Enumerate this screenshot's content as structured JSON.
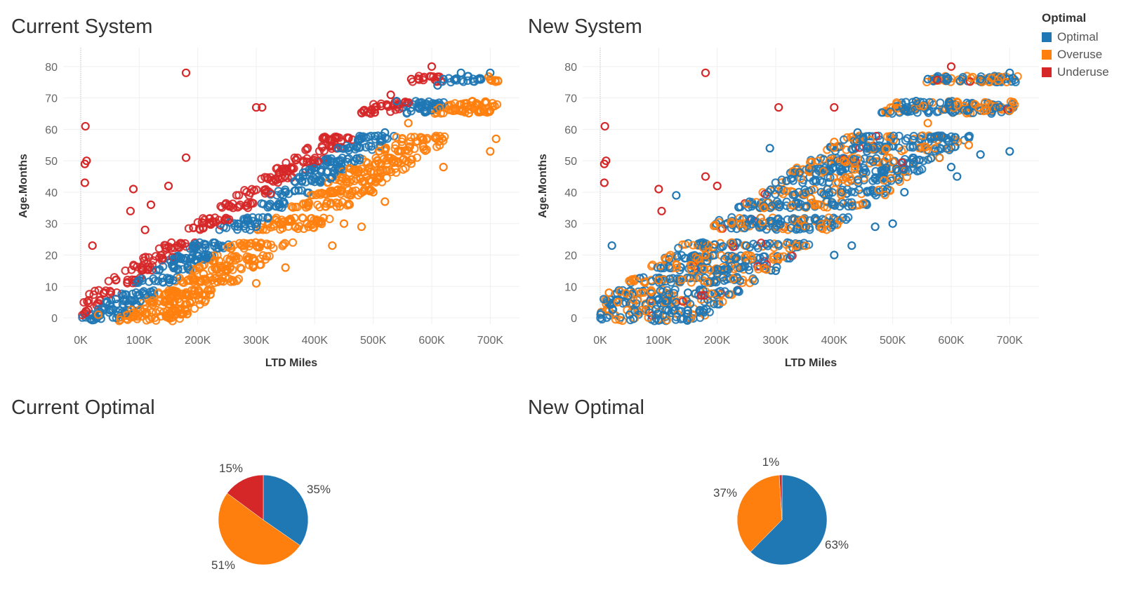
{
  "colors": {
    "Optimal": "#1f77b4",
    "Overuse": "#ff7f0e",
    "Underuse": "#d62728"
  },
  "titles": {
    "current_system": "Current System",
    "new_system": "New System",
    "current_optimal": "Current Optimal",
    "new_optimal": "New Optimal"
  },
  "legend": {
    "title": "Optimal",
    "items": [
      "Optimal",
      "Overuse",
      "Underuse"
    ]
  },
  "chart_data": [
    {
      "type": "scatter",
      "title": "Current System",
      "xlabel": "LTD Miles",
      "ylabel": "Age.Months",
      "xlim": [
        -30000,
        750000
      ],
      "ylim": [
        -2,
        86
      ],
      "xticks": [
        0,
        100000,
        200000,
        300000,
        400000,
        500000,
        600000,
        700000
      ],
      "xticklabels": [
        "0K",
        "100K",
        "200K",
        "300K",
        "400K",
        "500K",
        "600K",
        "700K"
      ],
      "yticks": [
        0,
        10,
        20,
        30,
        40,
        50,
        60,
        70,
        80
      ],
      "series": [
        {
          "name": "Underuse",
          "points": [
            [
              8000,
              61
            ],
            [
              7000,
              49
            ],
            [
              10000,
              50
            ],
            [
              7000,
              43
            ],
            [
              20000,
              23
            ],
            [
              90000,
              41
            ],
            [
              85000,
              34
            ],
            [
              180000,
              78
            ],
            [
              300000,
              67
            ],
            [
              310000,
              67
            ],
            [
              600000,
              80
            ],
            [
              565000,
              76
            ],
            [
              530000,
              71
            ],
            [
              180000,
              51
            ],
            [
              110000,
              28
            ],
            [
              60000,
              12
            ],
            [
              40000,
              8
            ],
            [
              10000,
              2
            ],
            [
              120000,
              36
            ],
            [
              150000,
              42
            ]
          ]
        },
        {
          "name": "Optimal",
          "points": [
            [
              620000,
              76
            ],
            [
              650000,
              78
            ],
            [
              700000,
              78
            ],
            [
              610000,
              74
            ],
            [
              540000,
              69
            ],
            [
              520000,
              59
            ],
            [
              480000,
              57
            ],
            [
              440000,
              54
            ],
            [
              300000,
              29
            ],
            [
              320000,
              32
            ],
            [
              350000,
              40
            ],
            [
              380000,
              45
            ],
            [
              200000,
              23
            ],
            [
              180000,
              19
            ],
            [
              160000,
              18
            ],
            [
              100000,
              12
            ],
            [
              60000,
              6
            ],
            [
              30000,
              1
            ]
          ]
        },
        {
          "name": "Overuse",
          "points": [
            [
              700000,
              76
            ],
            [
              710000,
              57
            ],
            [
              700000,
              53
            ],
            [
              640000,
              66
            ],
            [
              700000,
              66
            ],
            [
              650000,
              68
            ],
            [
              560000,
              62
            ],
            [
              500000,
              40
            ],
            [
              480000,
              29
            ],
            [
              450000,
              30
            ],
            [
              430000,
              23
            ],
            [
              350000,
              16
            ],
            [
              300000,
              11
            ],
            [
              250000,
              15
            ],
            [
              210000,
              14
            ],
            [
              150000,
              8
            ],
            [
              80000,
              1
            ],
            [
              30000,
              1
            ],
            [
              620000,
              48
            ],
            [
              520000,
              37
            ]
          ]
        }
      ]
    },
    {
      "type": "scatter",
      "title": "New System",
      "xlabel": "LTD Miles",
      "ylabel": "Age.Months",
      "xlim": [
        -30000,
        750000
      ],
      "ylim": [
        -2,
        86
      ],
      "xticks": [
        0,
        100000,
        200000,
        300000,
        400000,
        500000,
        600000,
        700000
      ],
      "xticklabels": [
        "0K",
        "100K",
        "200K",
        "300K",
        "400K",
        "500K",
        "600K",
        "700K"
      ],
      "yticks": [
        0,
        10,
        20,
        30,
        40,
        50,
        60,
        70,
        80
      ],
      "series": [
        {
          "name": "Underuse",
          "points": [
            [
              8000,
              61
            ],
            [
              7000,
              49
            ],
            [
              10000,
              50
            ],
            [
              7000,
              43
            ],
            [
              180000,
              78
            ],
            [
              600000,
              80
            ],
            [
              305000,
              67
            ],
            [
              100000,
              41
            ],
            [
              105000,
              34
            ],
            [
              180000,
              45
            ],
            [
              200000,
              42
            ],
            [
              400000,
              67
            ]
          ]
        },
        {
          "name": "Optimal",
          "points": [
            [
              700000,
              78
            ],
            [
              650000,
              76
            ],
            [
              560000,
              76
            ],
            [
              520000,
              66
            ],
            [
              540000,
              69
            ],
            [
              440000,
              59
            ],
            [
              450000,
              57
            ],
            [
              700000,
              53
            ],
            [
              650000,
              52
            ],
            [
              610000,
              45
            ],
            [
              600000,
              48
            ],
            [
              520000,
              40
            ],
            [
              470000,
              29
            ],
            [
              500000,
              30
            ],
            [
              430000,
              23
            ],
            [
              400000,
              20
            ],
            [
              300000,
              15
            ],
            [
              250000,
              23
            ],
            [
              200000,
              14
            ],
            [
              150000,
              8
            ],
            [
              100000,
              6
            ],
            [
              50000,
              1
            ],
            [
              20000,
              23
            ],
            [
              130000,
              39
            ],
            [
              290000,
              54
            ]
          ]
        },
        {
          "name": "Overuse",
          "points": [
            [
              700000,
              66
            ],
            [
              660000,
              66
            ],
            [
              640000,
              68
            ],
            [
              630000,
              55
            ],
            [
              560000,
              62
            ],
            [
              490000,
              51
            ],
            [
              400000,
              56
            ],
            [
              240000,
              30
            ],
            [
              180000,
              20
            ],
            [
              130000,
              17
            ],
            [
              100000,
              12
            ],
            [
              70000,
              8
            ],
            [
              30000,
              5
            ],
            [
              15000,
              8
            ],
            [
              360000,
              38
            ],
            [
              280000,
              35
            ]
          ]
        }
      ]
    },
    {
      "type": "pie",
      "title": "Current Optimal",
      "labels": [
        "Optimal",
        "Overuse",
        "Underuse"
      ],
      "values": [
        35,
        51,
        15
      ],
      "value_labels": [
        "35%",
        "51%",
        "15%"
      ]
    },
    {
      "type": "pie",
      "title": "New Optimal",
      "labels": [
        "Optimal",
        "Overuse",
        "Underuse"
      ],
      "values": [
        63,
        37,
        1
      ],
      "value_labels": [
        "63%",
        "37%",
        "1%"
      ]
    }
  ]
}
